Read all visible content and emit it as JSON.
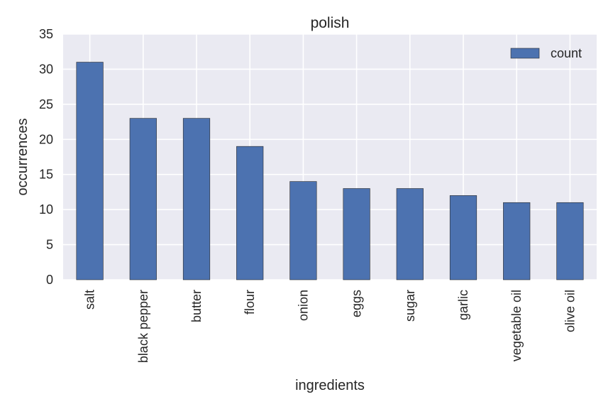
{
  "chart_data": {
    "type": "bar",
    "title": "polish",
    "xlabel": "ingredients",
    "ylabel": "occurrences",
    "categories": [
      "salt",
      "black pepper",
      "butter",
      "flour",
      "onion",
      "eggs",
      "sugar",
      "garlic",
      "vegetable oil",
      "olive oil"
    ],
    "series": [
      {
        "name": "count",
        "values": [
          31,
          23,
          23,
          19,
          14,
          13,
          13,
          12,
          11,
          11
        ]
      }
    ],
    "ylim": [
      0,
      35
    ],
    "yticks": [
      0,
      5,
      10,
      15,
      20,
      25,
      30,
      35
    ],
    "grid": true,
    "legend_position": "top-right",
    "colors": {
      "bar": "#4c72b0",
      "plot_background": "#eaeaf2",
      "grid": "#ffffff",
      "text": "#262626"
    }
  }
}
